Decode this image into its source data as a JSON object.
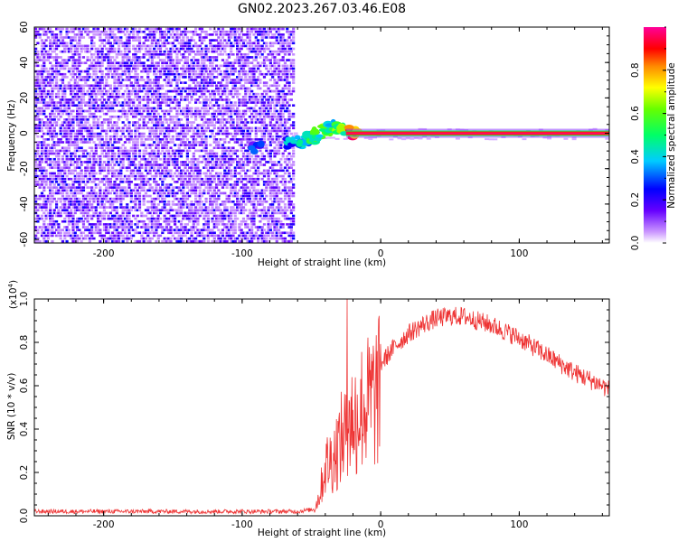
{
  "title": "GN02.2023.267.03.46.E08",
  "chart_data": [
    {
      "type": "heatmap",
      "xlabel": "Height of straight line (km)",
      "ylabel": "Frequency (Hz)",
      "xlim": [
        -250,
        165
      ],
      "ylim": [
        -62,
        60
      ],
      "x_ticks": [
        -200,
        -100,
        0,
        100
      ],
      "x_tick_labels": [
        "-200",
        "-100",
        "0",
        "100"
      ],
      "y_ticks": [
        -60,
        -40,
        -20,
        0,
        20,
        40,
        60
      ],
      "y_tick_labels": [
        "-60",
        "-40",
        "-20",
        "0",
        "20",
        "40",
        "60"
      ],
      "colorbar": {
        "label": "Normalized spectral amplitude",
        "range": [
          0,
          1
        ],
        "ticks": [
          0.0,
          0.2,
          0.4,
          0.6,
          0.8
        ],
        "tick_labels": [
          "0.0",
          "0.2",
          "0.4",
          "0.6",
          "0.8"
        ],
        "colormap": "rainbow (white-violet-blue-cyan-green-yellow-red-magenta)"
      },
      "noise_region_x": [
        -250,
        -63
      ],
      "signal_band": [
        {
          "x": -90,
          "freq": -8,
          "amp": 0.25
        },
        {
          "x": -65,
          "freq": -6,
          "amp": 0.3
        },
        {
          "x": -60,
          "freq": -5,
          "amp": 0.35
        },
        {
          "x": -55,
          "freq": -3,
          "amp": 0.4
        },
        {
          "x": -50,
          "freq": -2,
          "amp": 0.45
        },
        {
          "x": -45,
          "freq": 0,
          "amp": 0.5
        },
        {
          "x": -40,
          "freq": 2,
          "amp": 0.55
        },
        {
          "x": -35,
          "freq": 4,
          "amp": 0.45
        },
        {
          "x": -30,
          "freq": 2,
          "amp": 0.55
        },
        {
          "x": -20,
          "freq": 0.5,
          "amp": 0.85
        },
        {
          "x": -10,
          "freq": 0,
          "amp": 0.9
        },
        {
          "x": 0,
          "freq": 0,
          "amp": 0.95
        },
        {
          "x": 50,
          "freq": 0,
          "amp": 0.98
        },
        {
          "x": 100,
          "freq": 0,
          "amp": 0.98
        },
        {
          "x": 165,
          "freq": 0,
          "amp": 0.98
        }
      ]
    },
    {
      "type": "line",
      "xlabel": "Height of straight line (km)",
      "ylabel": "SNR (10 * v/v)",
      "y_multiplier": "(x10",
      "y_multiplier_exp": "4",
      "y_multiplier_close": ")",
      "xlim": [
        -250,
        165
      ],
      "ylim": [
        0,
        1.0
      ],
      "x_ticks": [
        -200,
        -100,
        0,
        100
      ],
      "x_tick_labels": [
        "-200",
        "-100",
        "0",
        "100"
      ],
      "y_ticks": [
        0.0,
        0.2,
        0.4,
        0.6,
        0.8,
        1.0
      ],
      "y_tick_labels": [
        "0.0",
        "0.2",
        "0.4",
        "0.6",
        "0.8",
        "1.0"
      ],
      "color": "#ee3333",
      "series": [
        {
          "x": [
            -250,
            -200,
            -150,
            -100,
            -60,
            -48,
            -44,
            -40,
            -35,
            -30,
            -25,
            -20,
            -15,
            -10,
            0,
            10,
            20,
            30,
            40,
            50,
            60,
            70,
            80,
            90,
            100,
            110,
            120,
            130,
            140,
            150,
            160,
            165
          ],
          "y": [
            0.02,
            0.02,
            0.02,
            0.02,
            0.02,
            0.03,
            0.12,
            0.28,
            0.32,
            0.4,
            0.48,
            0.55,
            0.6,
            0.62,
            0.7,
            0.78,
            0.84,
            0.88,
            0.91,
            0.92,
            0.92,
            0.9,
            0.88,
            0.85,
            0.82,
            0.78,
            0.74,
            0.7,
            0.66,
            0.63,
            0.6,
            0.58
          ]
        }
      ]
    }
  ]
}
